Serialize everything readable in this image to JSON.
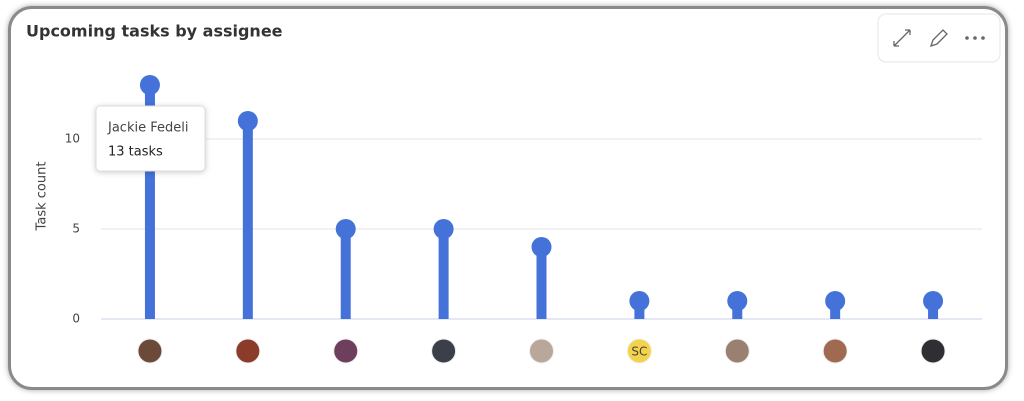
{
  "chart_data": {
    "type": "lollipop",
    "title": "Upcoming tasks by assignee",
    "y_label": "Task count",
    "categories": [
      null,
      null,
      null,
      null,
      null,
      "SC",
      null,
      null,
      null
    ],
    "values": [
      13,
      11,
      5,
      5,
      4,
      1,
      1,
      1,
      1
    ],
    "color": "#4472d8",
    "ylim": [
      0,
      14
    ],
    "yticks": [
      0,
      5,
      10
    ],
    "grid": true,
    "tooltip": {
      "title": "Jackie Fedeli",
      "text": "13 tasks"
    }
  }
}
